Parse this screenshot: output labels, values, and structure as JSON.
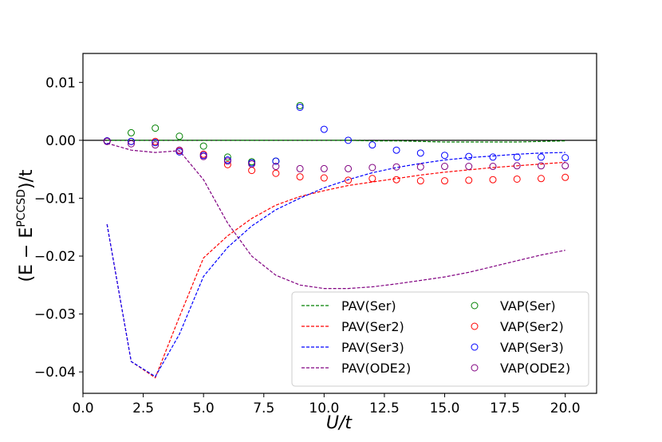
{
  "chart_data": {
    "type": "line",
    "xlabel": "U/t",
    "ylabel": "(E − E^PCCSD)/t",
    "ylabel_parts": [
      "(E − E",
      "PCCSD",
      ")/t"
    ],
    "xlim": [
      0.0,
      21.3
    ],
    "ylim": [
      -0.0437,
      0.015
    ],
    "x_ticks": [
      0,
      2.5,
      5,
      7.5,
      10,
      12.5,
      15,
      17.5,
      20
    ],
    "x_tick_labels": [
      "0.0",
      "2.5",
      "5.0",
      "7.5",
      "10.0",
      "12.5",
      "15.0",
      "17.5",
      "20.0"
    ],
    "y_ticks": [
      0.01,
      0.0,
      -0.01,
      -0.02,
      -0.03,
      -0.04
    ],
    "y_tick_labels": [
      "0.01",
      "0.00",
      "−0.01",
      "−0.02",
      "−0.03",
      "−0.04"
    ],
    "zero_line": 0.0,
    "legend_position": "lower-right",
    "line_series": [
      {
        "name": "PAV(Ser)",
        "color": "#008000",
        "x": [
          1,
          2,
          3,
          4,
          5,
          6,
          7,
          8,
          9,
          10,
          11,
          12,
          13,
          14,
          15,
          16,
          17,
          18,
          19,
          20
        ],
        "values": [
          0.0,
          0.0,
          0.0,
          0.0,
          0.0,
          0.0,
          0.0,
          0.0,
          0.0,
          0.0,
          0.0,
          -0.0001,
          -0.0001,
          -0.0002,
          -0.0003,
          -0.0003,
          -0.0003,
          -0.0003,
          -0.0002,
          -0.0001
        ]
      },
      {
        "name": "PAV(Ser2)",
        "color": "#ff0000",
        "x": [
          1,
          2,
          3,
          4,
          5,
          6,
          7,
          8,
          9,
          10,
          11,
          12,
          13,
          14,
          15,
          16,
          17,
          18,
          19,
          20
        ],
        "values": [
          -0.0145,
          -0.0382,
          -0.041,
          -0.0305,
          -0.0203,
          -0.0165,
          -0.0135,
          -0.0112,
          -0.0097,
          -0.0087,
          -0.0078,
          -0.0072,
          -0.0066,
          -0.006,
          -0.0055,
          -0.0051,
          -0.0047,
          -0.0044,
          -0.0041,
          -0.0038
        ]
      },
      {
        "name": "PAV(Ser3)",
        "color": "#0000ff",
        "x": [
          1,
          2,
          3,
          4,
          5,
          6,
          7,
          8,
          9,
          10,
          11,
          12,
          13,
          14,
          15,
          16,
          17,
          18,
          19,
          20
        ],
        "values": [
          -0.0145,
          -0.0382,
          -0.0408,
          -0.0335,
          -0.0235,
          -0.0185,
          -0.0148,
          -0.012,
          -0.01,
          -0.0082,
          -0.0068,
          -0.0056,
          -0.0047,
          -0.004,
          -0.0034,
          -0.003,
          -0.0027,
          -0.0024,
          -0.0022,
          -0.0021
        ]
      },
      {
        "name": "PAV(ODE2)",
        "color": "#800080",
        "x": [
          1,
          2,
          3,
          4,
          5,
          6,
          7,
          8,
          9,
          10,
          11,
          12,
          13,
          14,
          15,
          16,
          17,
          18,
          19,
          20
        ],
        "values": [
          -0.0005,
          -0.0017,
          -0.0021,
          -0.0018,
          -0.0068,
          -0.0143,
          -0.02,
          -0.0233,
          -0.025,
          -0.0256,
          -0.0256,
          -0.0253,
          -0.0248,
          -0.0242,
          -0.0236,
          -0.0228,
          -0.0218,
          -0.0208,
          -0.0198,
          -0.019
        ]
      }
    ],
    "scatter_series": [
      {
        "name": "VAP(Ser)",
        "color": "#008000",
        "x": [
          1,
          2,
          3,
          4,
          5,
          6,
          7,
          8,
          9
        ],
        "values": [
          -0.0001,
          0.0013,
          0.0021,
          0.0007,
          -0.001,
          -0.0029,
          -0.0037,
          -0.0036,
          0.006
        ]
      },
      {
        "name": "VAP(Ser2)",
        "color": "#ff0000",
        "x": [
          1,
          2,
          3,
          4,
          5,
          6,
          7,
          8,
          9,
          10,
          11,
          12,
          13,
          14,
          15,
          16,
          17,
          18,
          19,
          20
        ],
        "values": [
          -0.0001,
          -0.0002,
          -0.0002,
          -0.0018,
          -0.0024,
          -0.0042,
          -0.0052,
          -0.0057,
          -0.0063,
          -0.0065,
          -0.0069,
          -0.0066,
          -0.0068,
          -0.007,
          -0.007,
          -0.0069,
          -0.0068,
          -0.0067,
          -0.0066,
          -0.0064
        ]
      },
      {
        "name": "VAP(Ser3)",
        "color": "#0000ff",
        "x": [
          1,
          2,
          3,
          4,
          5,
          6,
          7,
          8,
          9,
          10,
          11,
          12,
          13,
          14,
          15,
          16,
          17,
          18,
          19,
          20
        ],
        "values": [
          -0.0001,
          -0.0002,
          -0.0004,
          -0.002,
          -0.0026,
          -0.0034,
          -0.0039,
          -0.0036,
          0.0057,
          0.0019,
          0.0,
          -0.0008,
          -0.0017,
          -0.0022,
          -0.0026,
          -0.0028,
          -0.0029,
          -0.0029,
          -0.0029,
          -0.003
        ]
      },
      {
        "name": "VAP(ODE2)",
        "color": "#800080",
        "x": [
          1,
          2,
          3,
          4,
          5,
          6,
          7,
          8,
          9,
          10,
          11,
          12,
          13,
          14,
          15,
          16,
          17,
          18,
          19,
          20
        ],
        "values": [
          -0.0002,
          -0.0006,
          -0.0008,
          -0.0017,
          -0.0028,
          -0.0036,
          -0.0041,
          -0.0045,
          -0.0049,
          -0.0049,
          -0.0049,
          -0.0047,
          -0.0046,
          -0.0046,
          -0.0045,
          -0.0045,
          -0.0045,
          -0.0044,
          -0.0044,
          -0.0044
        ]
      }
    ]
  }
}
